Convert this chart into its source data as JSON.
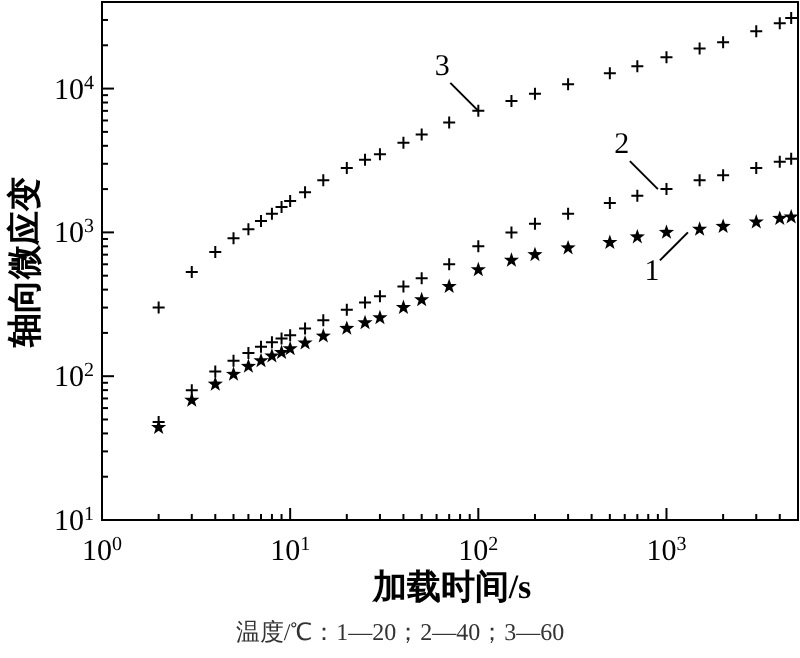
{
  "chart_data": {
    "type": "scatter",
    "xlabel": "加载时间/s",
    "ylabel": "轴向微应变",
    "log": "xy",
    "grid": false,
    "legend": false,
    "xlim": [
      1,
      5000
    ],
    "ylim": [
      10,
      40000
    ],
    "xticks": [
      {
        "value": 1,
        "label": "10$^{0}$"
      },
      {
        "value": 2,
        "label": null
      },
      {
        "value": 3,
        "label": null
      },
      {
        "value": 4,
        "label": null
      },
      {
        "value": 5,
        "label": null
      },
      {
        "value": 6,
        "label": null
      },
      {
        "value": 7,
        "label": null
      },
      {
        "value": 8,
        "label": null
      },
      {
        "value": 9,
        "label": null
      },
      {
        "value": 10,
        "label": "10$^{1}$"
      },
      {
        "value": 20,
        "label": null
      },
      {
        "value": 30,
        "label": null
      },
      {
        "value": 40,
        "label": null
      },
      {
        "value": 50,
        "label": null
      },
      {
        "value": 60,
        "label": null
      },
      {
        "value": 70,
        "label": null
      },
      {
        "value": 80,
        "label": null
      },
      {
        "value": 90,
        "label": null
      },
      {
        "value": 100,
        "label": "10$^{2}$"
      },
      {
        "value": 200,
        "label": null
      },
      {
        "value": 300,
        "label": null
      },
      {
        "value": 400,
        "label": null
      },
      {
        "value": 500,
        "label": null
      },
      {
        "value": 600,
        "label": null
      },
      {
        "value": 700,
        "label": null
      },
      {
        "value": 800,
        "label": null
      },
      {
        "value": 900,
        "label": null
      },
      {
        "value": 1000,
        "label": "10$^{3}$"
      },
      {
        "value": 2000,
        "label": null
      },
      {
        "value": 3000,
        "label": null
      },
      {
        "value": 4000,
        "label": null
      },
      {
        "value": 5000,
        "label": null
      }
    ],
    "yticks": [
      {
        "value": 10,
        "label": "10$^{1}$"
      },
      {
        "value": 20,
        "label": null
      },
      {
        "value": 30,
        "label": null
      },
      {
        "value": 40,
        "label": null
      },
      {
        "value": 50,
        "label": null
      },
      {
        "value": 60,
        "label": null
      },
      {
        "value": 70,
        "label": null
      },
      {
        "value": 80,
        "label": null
      },
      {
        "value": 90,
        "label": null
      },
      {
        "value": 100,
        "label": "10$^{2}$"
      },
      {
        "value": 200,
        "label": null
      },
      {
        "value": 300,
        "label": null
      },
      {
        "value": 400,
        "label": null
      },
      {
        "value": 500,
        "label": null
      },
      {
        "value": 600,
        "label": null
      },
      {
        "value": 700,
        "label": null
      },
      {
        "value": 800,
        "label": null
      },
      {
        "value": 900,
        "label": null
      },
      {
        "value": 1000,
        "label": "10$^{3}$"
      },
      {
        "value": 2000,
        "label": null
      },
      {
        "value": 3000,
        "label": null
      },
      {
        "value": 4000,
        "label": null
      },
      {
        "value": 5000,
        "label": null
      },
      {
        "value": 6000,
        "label": null
      },
      {
        "value": 7000,
        "label": null
      },
      {
        "value": 8000,
        "label": null
      },
      {
        "value": 9000,
        "label": null
      },
      {
        "value": 10000,
        "label": "10$^{4}$"
      },
      {
        "value": 20000,
        "label": null
      },
      {
        "value": 30000,
        "label": null
      },
      {
        "value": 40000,
        "label": null
      }
    ],
    "x": [
      2,
      3,
      4,
      5,
      6,
      7,
      8,
      9,
      10,
      12,
      15,
      20,
      25,
      30,
      40,
      50,
      70,
      100,
      150,
      200,
      300,
      500,
      700,
      1000,
      1500,
      2000,
      3000,
      4000,
      4600
    ],
    "series": [
      {
        "color": "#000000",
        "marker": "star",
        "values": [
          44,
          68,
          88,
          103,
          117,
          128,
          138,
          146,
          155,
          170,
          190,
          215,
          235,
          255,
          300,
          340,
          420,
          550,
          640,
          700,
          780,
          850,
          930,
          1000,
          1050,
          1100,
          1180,
          1250,
          1280
        ]
      },
      {
        "color": "#000000",
        "marker": "cross",
        "values": [
          48,
          80,
          108,
          128,
          145,
          160,
          172,
          183,
          193,
          215,
          245,
          290,
          325,
          360,
          420,
          480,
          600,
          800,
          1000,
          1150,
          1350,
          1600,
          1800,
          2000,
          2300,
          2500,
          2800,
          3100,
          3250
        ]
      },
      {
        "color": "#000000",
        "marker": "cross",
        "values": [
          300,
          530,
          730,
          910,
          1050,
          1200,
          1350,
          1500,
          1650,
          1900,
          2300,
          2800,
          3200,
          3500,
          4200,
          4800,
          5800,
          7000,
          8200,
          9200,
          10700,
          12800,
          14300,
          16500,
          19000,
          21000,
          25000,
          28500,
          31000
        ]
      }
    ],
    "annotations": [
      {
        "text": "1",
        "x": 1300,
        "y": 1000
      },
      {
        "text": "2",
        "x": 900,
        "y": 2000
      },
      {
        "text": "3",
        "x": 100,
        "y": 7000
      },
      "温度/℃：1—20；2—40；3—60"
    ]
  }
}
